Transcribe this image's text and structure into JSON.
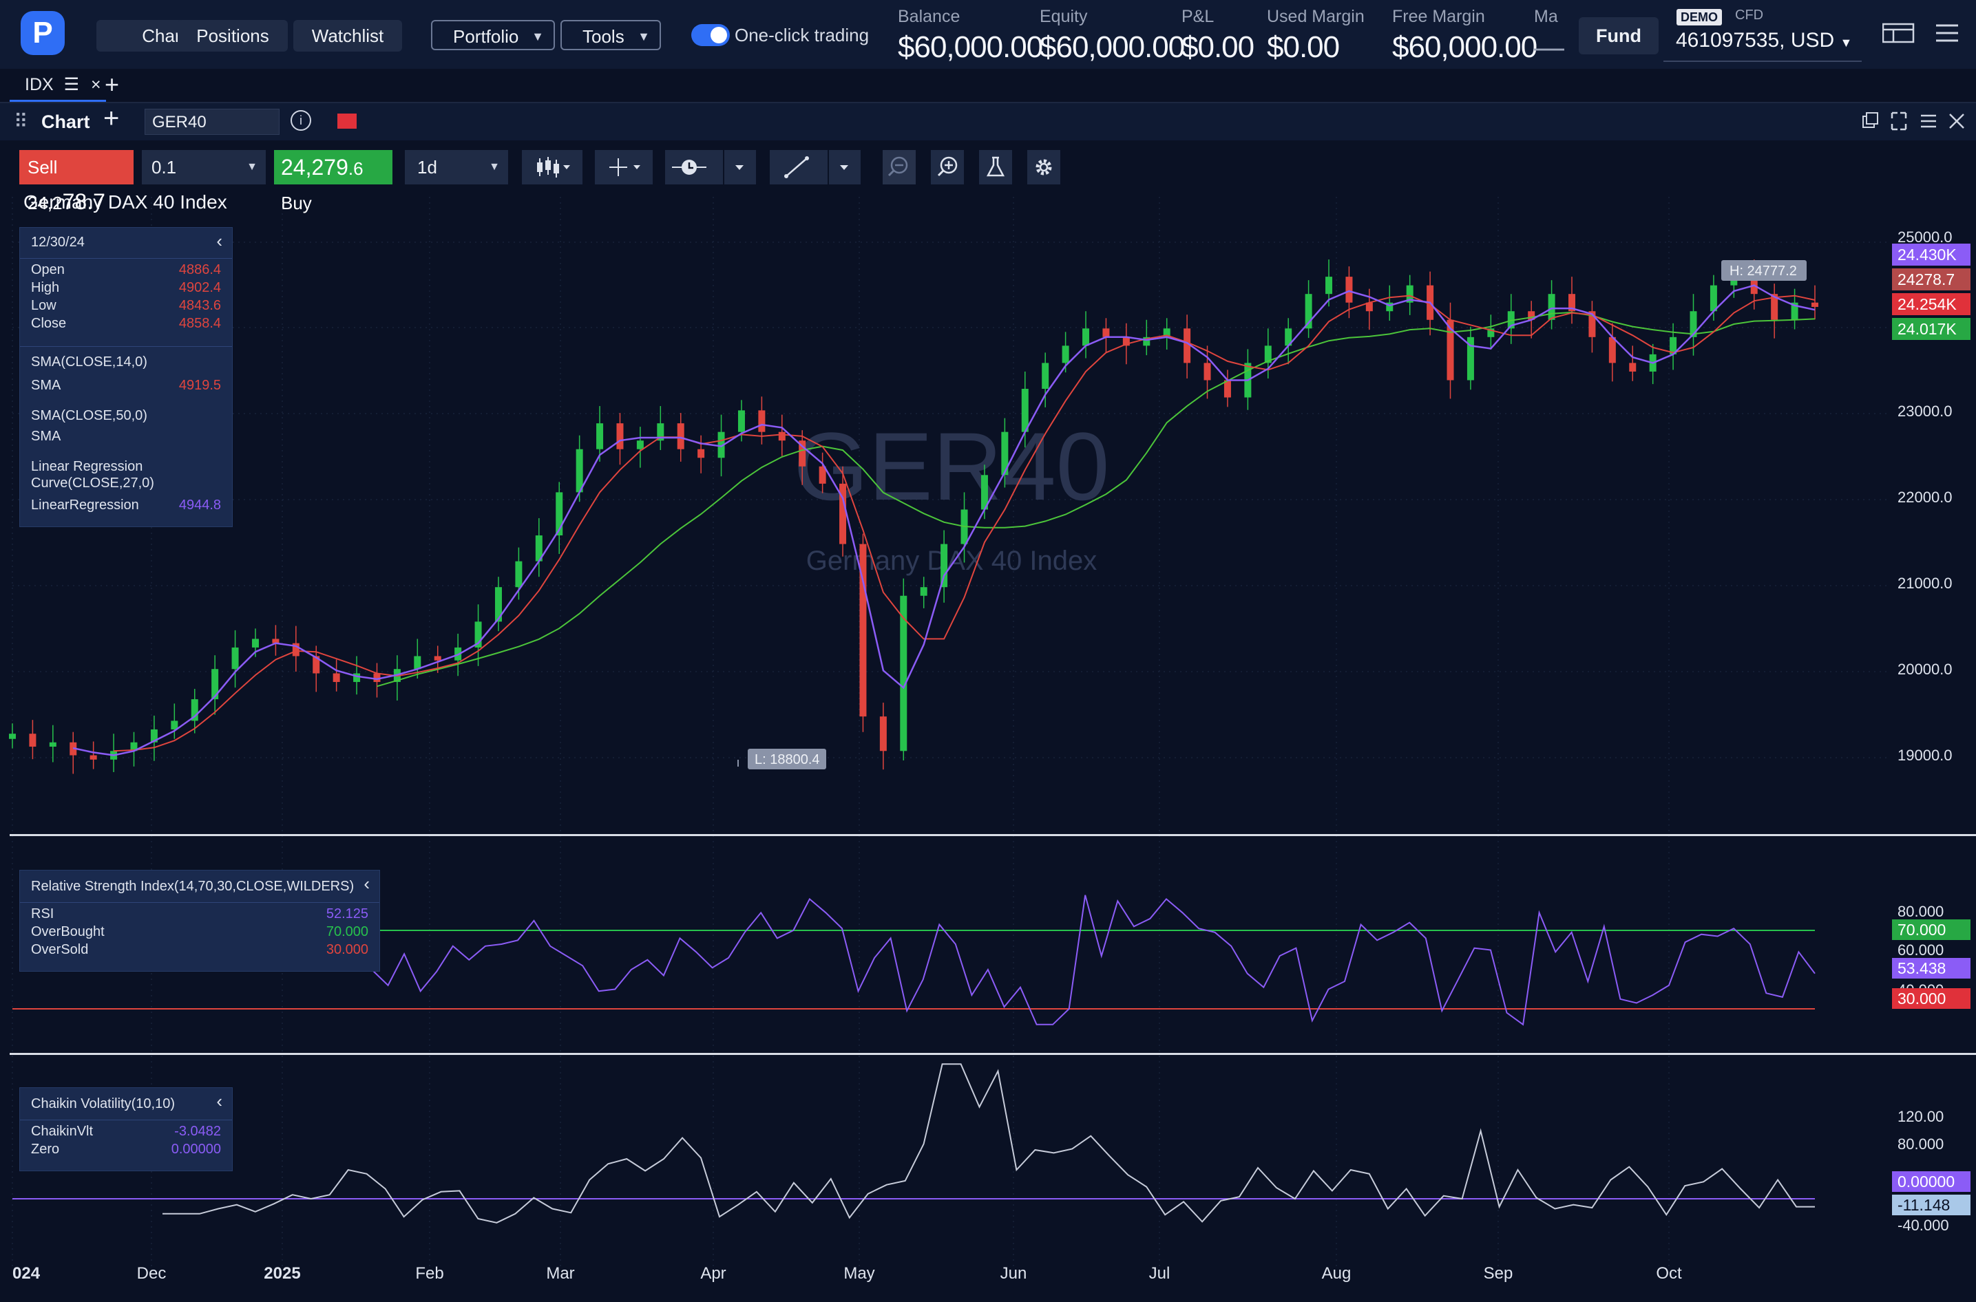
{
  "nav": {
    "logo_letter": "P",
    "chart": "Chart",
    "positions": "Positions",
    "watchlist": "Watchlist",
    "portfolio": "Portfolio",
    "tools": "Tools",
    "one_click": "One-click trading"
  },
  "account": {
    "balance_label": "Balance",
    "balance": "$60,000.00",
    "equity_label": "Equity",
    "equity": "$60,000.00",
    "pl_label": "P&L",
    "pl": "$0.00",
    "used_margin_label": "Used Margin",
    "used_margin": "$0.00",
    "free_margin_label": "Free Margin",
    "free_margin": "$60,000.00",
    "margin_level_label": "Ma",
    "margin_level": "—",
    "fund": "Fund",
    "demo": "DEMO",
    "cfd": "CFD",
    "account_id": "461097535, USD"
  },
  "tabs": {
    "idx": "IDX"
  },
  "chart_header": {
    "title": "Chart",
    "symbol": "GER40"
  },
  "toolbar": {
    "sell_label": "Sell 24,2",
    "sell_big": "78.7",
    "qty": "0.1",
    "buy_big": "24,279",
    "buy_label": ".6 Buy",
    "timeframe": "1d"
  },
  "colors": {
    "bg": "#0a1124",
    "up": "#27c24c",
    "down": "#e0453e",
    "sma14": "#8b5cf6",
    "sma50": "#4cc53a",
    "linreg": "#e0453e",
    "rsi": "#8b5cf6",
    "ob": "#27c24c",
    "os": "#e0453e",
    "chaikin": "#c7ccda",
    "zero": "#8b5cf6"
  },
  "chart_data": {
    "type": "candlestick",
    "title": "Germany DAX 40 Index",
    "watermark_symbol": "GER40",
    "watermark_name": "Germany DAX 40 Index",
    "x_tick_labels": [
      "024",
      "Dec",
      "2025",
      "Feb",
      "Mar",
      "Apr",
      "May",
      "Jun",
      "Jul",
      "Aug",
      "Sep",
      "Oct"
    ],
    "price_ticks": [
      "25000.0",
      "23000.0",
      "22000.0",
      "21000.0",
      "20000.0",
      "19000.0"
    ],
    "high_marker": "H: 24777.2",
    "low_marker": "L: 18800.4",
    "last_price": "24278.7",
    "axis_tags": {
      "linreg": "24.430K",
      "price": "24278.7",
      "sma14": "24.254K",
      "sma50": "24.017K"
    },
    "ohlc_legend": {
      "date": "12/30/24",
      "open_label": "Open",
      "open": "4886.4",
      "high_label": "High",
      "high": "4902.4",
      "low_label": "Low",
      "low": "4843.6",
      "close_label": "Close",
      "close": "4858.4"
    },
    "indicators": {
      "sma14_title": "SMA(CLOSE,14,0)",
      "sma14_label": "SMA",
      "sma14_value": "4919.5",
      "sma50_title": "SMA(CLOSE,50,0)",
      "sma50_label": "SMA",
      "linreg_title_1": "Linear Regression",
      "linreg_title_2": "Curve(CLOSE,27,0)",
      "linreg_label": "LinearRegression",
      "linreg_value": "4944.8"
    },
    "rsi": {
      "title": "Relative Strength Index(14,70,30,CLOSE,WILDERS)",
      "rsi_label": "RSI",
      "rsi_value": "52.125",
      "ob_label": "OverBought",
      "ob_value": "70.000",
      "os_label": "OverSold",
      "os_value": "30.000",
      "ticks": [
        "80.000",
        "60.000",
        "40.000"
      ],
      "tags": {
        "ob": "70.000",
        "rsi": "53.438",
        "os": "30.000"
      }
    },
    "chaikin": {
      "title": "Chaikin Volatility(10,10)",
      "label": "ChaikinVlt",
      "value": "-3.0482",
      "zero_label": "Zero",
      "zero_value": "0.00000",
      "ticks": [
        "120.00",
        "80.000",
        "-40.000"
      ],
      "tags": {
        "zero": "0.00000",
        "value": "-11.148"
      }
    },
    "series_close_approx": [
      19300,
      19150,
      19200,
      19050,
      19000,
      19100,
      19200,
      19350,
      19450,
      19700,
      20050,
      20300,
      20400,
      20350,
      20200,
      20000,
      19900,
      20000,
      19900,
      20050,
      20200,
      20150,
      20300,
      20600,
      21000,
      21300,
      21600,
      22100,
      22600,
      22900,
      22600,
      22700,
      22900,
      22600,
      22500,
      22800,
      23050,
      22800,
      22700,
      22400,
      22200,
      21500,
      19500,
      19100,
      20900,
      21000,
      21500,
      21900,
      22300,
      22800,
      23300,
      23600,
      23800,
      24000,
      23900,
      23800,
      23900,
      24000,
      23600,
      23400,
      23200,
      23600,
      23800,
      24000,
      24400,
      24600,
      24300,
      24200,
      24300,
      24500,
      24100,
      23400,
      23900,
      24000,
      24200,
      24100,
      24400,
      24200,
      23900,
      23600,
      23500,
      23700,
      23900,
      24200,
      24500,
      24600,
      24400,
      24100,
      24300,
      24250
    ]
  }
}
